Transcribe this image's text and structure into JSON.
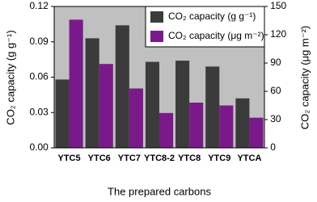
{
  "chart_data": {
    "type": "bar",
    "x_label": "The prepared carbons",
    "y_label": "CO₂ capacity (g g⁻¹)",
    "y2_label": "CO₂ capacity (μg m⁻²)",
    "categories": [
      "YTC5",
      "YTC6",
      "YTC7",
      "YTC8-2",
      "YTC8",
      "YTC9",
      "YTCA"
    ],
    "series": [
      {
        "name": "CO₂ capacity (g g⁻¹)",
        "color": "#3b3b3b",
        "values": [
          0.058,
          0.093,
          0.104,
          0.073,
          0.074,
          0.069,
          0.042
        ]
      },
      {
        "name": "CO₂ capacity (μg m⁻²)",
        "color": "#7a1a8a",
        "axis": "y2",
        "values": [
          136,
          89,
          63,
          37,
          48,
          45,
          32
        ]
      }
    ],
    "ylim": [
      0,
      0.12
    ],
    "yticks": [
      {
        "value": 0,
        "label": "0.00"
      },
      0.03,
      0.06,
      0.09,
      0.12
    ],
    "y2lim": [
      0,
      150
    ],
    "y2ticks": [
      0,
      30,
      60,
      90,
      120,
      150
    ],
    "legend": "upper right",
    "background": "#c0c0c0"
  }
}
